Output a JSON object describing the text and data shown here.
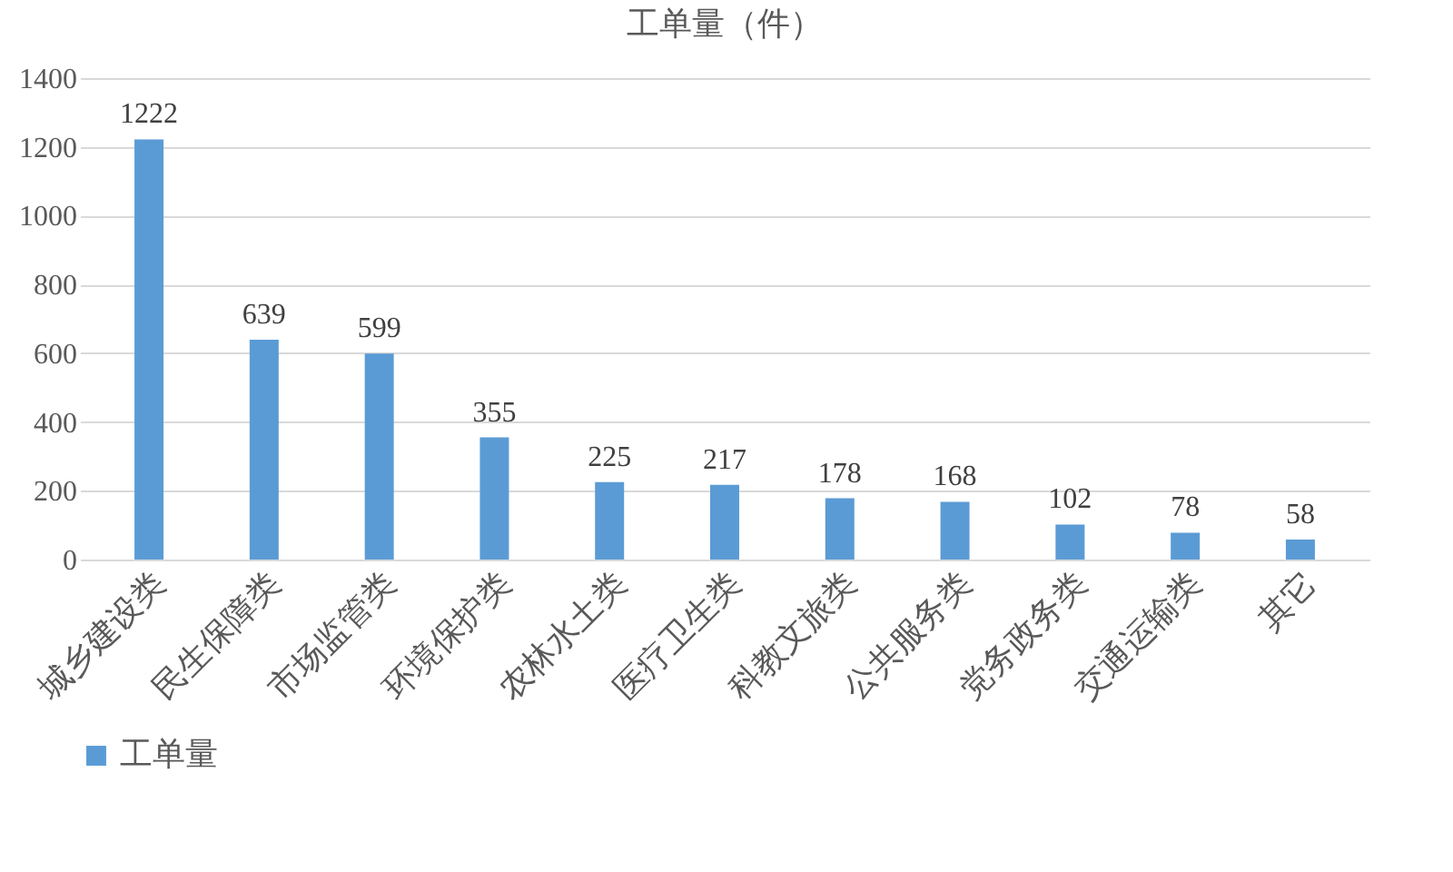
{
  "chart_data": {
    "type": "bar",
    "title": "工单量（件）",
    "categories": [
      "城乡建设类",
      "民生保障类",
      "市场监管类",
      "环境保护类",
      "农林水土类",
      "医疗卫生类",
      "科教文旅类",
      "公共服务类",
      "党务政务类",
      "交通运输类",
      "其它"
    ],
    "series": [
      {
        "name": "工单量",
        "color": "#5b9bd5",
        "values": [
          1222,
          639,
          599,
          355,
          225,
          217,
          178,
          168,
          102,
          78,
          58
        ]
      }
    ],
    "ylim": [
      0,
      1400
    ],
    "yticks": [
      0,
      200,
      400,
      600,
      800,
      1000,
      1200,
      1400
    ],
    "grid": "y",
    "legend": "bottom",
    "data_labels": true
  }
}
